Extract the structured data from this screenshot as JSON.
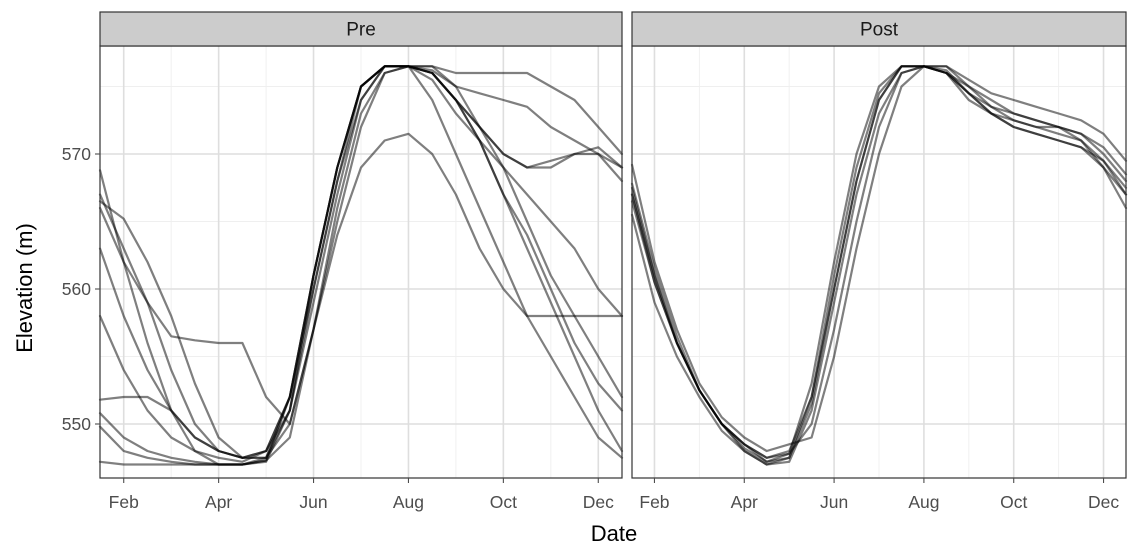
{
  "chart_data": {
    "type": "line",
    "xlabel": "Date",
    "ylabel": "Elevation (m)",
    "x_ticks": [
      "Feb",
      "Apr",
      "Jun",
      "Aug",
      "Oct",
      "Dec"
    ],
    "x_tick_months": [
      2,
      4,
      6,
      8,
      10,
      12
    ],
    "y_ticks": [
      550,
      560,
      570
    ],
    "xlim_months": [
      1.5,
      12.5
    ],
    "ylim": [
      546,
      578
    ],
    "grid": true,
    "line_color": "#000000",
    "strip_color": "#cccccc",
    "panels": [
      {
        "name": "Pre",
        "series": [
          {
            "x": [
              1.5,
              2,
              2.5,
              3,
              3.5,
              4,
              4.5,
              5,
              5.5,
              6,
              6.5,
              7,
              7.5,
              8,
              8.5,
              9,
              9.5,
              10,
              10.5,
              11,
              11.5,
              12,
              12.5
            ],
            "y": [
              568.8,
              562,
              556,
              551,
              548,
              547,
              547,
              547.2,
              551,
              561,
              569,
              575,
              576.5,
              576.5,
              576.5,
              575,
              572,
              570,
              569,
              569,
              570,
              570.5,
              569
            ]
          },
          {
            "x": [
              1.5,
              2,
              2.5,
              3,
              3.5,
              4,
              4.5,
              5,
              5.5,
              6,
              6.5,
              7,
              7.5,
              8,
              8.5,
              9,
              9.5,
              10,
              10.5,
              11,
              11.5,
              12,
              12.5
            ],
            "y": [
              567,
              563,
              559,
              554,
              550,
              548,
              547.5,
              548,
              552,
              561,
              569,
              575,
              576.5,
              576.5,
              576.2,
              575,
              574.5,
              574,
              573.5,
              572,
              571,
              570,
              568
            ]
          },
          {
            "x": [
              1.5,
              2,
              2.5,
              3,
              3.5,
              4,
              4.5,
              5,
              5.5,
              6,
              6.5,
              7,
              7.5,
              8,
              8.5,
              9,
              9.5,
              10,
              10.5,
              11,
              11.5,
              12,
              12.5
            ],
            "y": [
              563,
              558,
              554,
              551,
              549,
              548,
              547.5,
              548,
              551,
              559,
              567,
              574,
              576.5,
              576.5,
              575.5,
              573,
              571,
              569,
              567,
              565,
              563,
              560,
              558
            ]
          },
          {
            "x": [
              1.5,
              2,
              2.5,
              3,
              3.5,
              4,
              4.5,
              5,
              5.5,
              6,
              6.5,
              7,
              7.5,
              8,
              8.5,
              9,
              9.5,
              10,
              10.5,
              11,
              11.5,
              12,
              12.5
            ],
            "y": [
              558,
              554,
              551,
              549,
              548,
              547.5,
              547.2,
              548,
              552,
              560,
              568,
              575,
              576.5,
              576.5,
              574,
              570,
              566,
              562,
              558,
              555,
              552,
              549,
              547.5
            ]
          },
          {
            "x": [
              1.5,
              2,
              2.5,
              3,
              3.5,
              4,
              4.5,
              5,
              5.5,
              6,
              6.5,
              7,
              7.5,
              8,
              8.5,
              9,
              9.5,
              10,
              10.5,
              11,
              11.5,
              12,
              12.5
            ],
            "y": [
              551.8,
              552,
              552,
              551,
              549,
              548,
              547.5,
              547.5,
              551,
              560,
              568,
              574,
              576.5,
              576.5,
              576.5,
              576,
              576,
              576,
              576,
              575,
              574,
              572,
              570
            ]
          },
          {
            "x": [
              1.5,
              2,
              2.5,
              3,
              3.5,
              4,
              4.5,
              5,
              5.5,
              6,
              6.5,
              7,
              7.5,
              8,
              8.5,
              9,
              9.5,
              10,
              10.5,
              11,
              11.5,
              12,
              12.5
            ],
            "y": [
              550.8,
              549,
              548,
              547.5,
              547.2,
              547,
              547,
              547.3,
              552,
              561,
              569,
              575,
              576.5,
              576.5,
              576,
              574,
              572,
              570,
              569,
              569.5,
              570,
              570,
              569
            ]
          },
          {
            "x": [
              1.5,
              2,
              2.5,
              3,
              3.5,
              4,
              4.5,
              5,
              5.5,
              6,
              6.5,
              7,
              7.5,
              8,
              8.5,
              9,
              9.5,
              10,
              10.5,
              11,
              11.5,
              12,
              12.5
            ],
            "y": [
              549.8,
              548,
              547.5,
              547.2,
              547,
              547,
              547,
              547.3,
              549,
              557,
              566,
              573,
              576,
              576.5,
              576,
              574,
              572,
              569,
              565,
              561,
              558,
              555,
              552
            ]
          },
          {
            "x": [
              1.5,
              2,
              2.5,
              3,
              3.5,
              4,
              4.5,
              5,
              5.5,
              6,
              6.5,
              7,
              7.5,
              8,
              8.5,
              9,
              9.5,
              10,
              10.5,
              11,
              11.5,
              12,
              12.5
            ],
            "y": [
              547.2,
              547,
              547,
              547,
              547,
              547,
              547,
              547.5,
              550,
              557,
              564,
              569,
              571,
              571.5,
              570,
              567,
              563,
              560,
              558,
              558,
              558,
              558,
              558
            ]
          },
          {
            "x": [
              1.5,
              2,
              2.5,
              3,
              3.5,
              4,
              4.5,
              5,
              5.5,
              6,
              6.5,
              7,
              7.5,
              8,
              8.5,
              9,
              9.5,
              10,
              10.5,
              11,
              11.5,
              12,
              12.5
            ],
            "y": [
              566,
              562,
              559,
              556.5,
              556.2,
              556,
              556,
              552,
              550,
              557,
              565,
              572,
              576,
              576.5,
              576,
              574,
              571,
              567,
              563,
              559,
              555,
              551,
              548
            ]
          },
          {
            "x": [
              1.5,
              2,
              2.5,
              3,
              3.5,
              4,
              4.5,
              5,
              5.5,
              6,
              6.5,
              7,
              7.5,
              8,
              8.5,
              9,
              9.5,
              10,
              10.5,
              11,
              11.5,
              12,
              12.5
            ],
            "y": [
              566.5,
              565.2,
              562,
              558,
              553,
              549,
              547.5,
              547.5,
              552,
              561,
              569,
              575,
              576.5,
              576.5,
              576,
              574,
              571,
              567,
              564,
              560,
              556,
              553,
              551
            ]
          }
        ]
      },
      {
        "name": "Post",
        "series": [
          {
            "x": [
              1.5,
              2,
              2.5,
              3,
              3.5,
              4,
              4.5,
              5,
              5.5,
              6,
              6.5,
              7,
              7.5,
              8,
              8.5,
              9,
              9.5,
              10,
              10.5,
              11,
              11.5,
              12,
              12.5
            ],
            "y": [
              567.5,
              561,
              556,
              552.5,
              550,
              548,
              547,
              547.5,
              552,
              561,
              569,
              574.5,
              576.5,
              576.5,
              576,
              574,
              573,
              572.5,
              572,
              572,
              571.5,
              570,
              568
            ]
          },
          {
            "x": [
              1.5,
              2,
              2.5,
              3,
              3.5,
              4,
              4.5,
              5,
              5.5,
              6,
              6.5,
              7,
              7.5,
              8,
              8.5,
              9,
              9.5,
              10,
              10.5,
              11,
              11.5,
              12,
              12.5
            ],
            "y": [
              567,
              560.5,
              556,
              552.5,
              550,
              548.5,
              547.2,
              547.8,
              553,
              562,
              570,
              575,
              576.5,
              576.5,
              576.2,
              574.5,
              573,
              572,
              571.5,
              571,
              570.5,
              569.5,
              567.5
            ]
          },
          {
            "x": [
              1.5,
              2,
              2.5,
              3,
              3.5,
              4,
              4.5,
              5,
              5.5,
              6,
              6.5,
              7,
              7.5,
              8,
              8.5,
              9,
              9.5,
              10,
              10.5,
              11,
              11.5,
              12,
              12.5
            ],
            "y": [
              565.5,
              559,
              555,
              552,
              549.5,
              548,
              547,
              547.2,
              551,
              559,
              567,
              573,
              576,
              576.5,
              576,
              575,
              574,
              573,
              572.5,
              572,
              571,
              569,
              566
            ]
          },
          {
            "x": [
              1.5,
              2,
              2.5,
              3,
              3.5,
              4,
              4.5,
              5,
              5.5,
              6,
              6.5,
              7,
              7.5,
              8,
              8.5,
              9,
              9.5,
              10,
              10.5,
              11,
              11.5,
              12,
              12.5
            ],
            "y": [
              569.2,
              562,
              557,
              553,
              550.5,
              549,
              548,
              548.5,
              549,
              555,
              563,
              570,
              575,
              576.5,
              576.5,
              575.5,
              574.5,
              574,
              573.5,
              573,
              572.5,
              571.5,
              569.5
            ]
          },
          {
            "x": [
              1.5,
              2,
              2.5,
              3,
              3.5,
              4,
              4.5,
              5,
              5.5,
              6,
              6.5,
              7,
              7.5,
              8,
              8.5,
              9,
              9.5,
              10,
              10.5,
              11,
              11.5,
              12,
              12.5
            ],
            "y": [
              567.8,
              561.5,
              556.5,
              552.5,
              550,
              548.5,
              547.5,
              548,
              552,
              560,
              568,
              574,
              576.5,
              576.5,
              576,
              574.5,
              573.5,
              573,
              572.5,
              572,
              571.5,
              570.5,
              568.5
            ]
          },
          {
            "x": [
              1.5,
              2,
              2.5,
              3,
              3.5,
              4,
              4.5,
              5,
              5.5,
              6,
              6.5,
              7,
              7.5,
              8,
              8.5,
              9,
              9.5,
              10,
              10.5,
              11,
              11.5,
              12,
              12.5
            ],
            "y": [
              567,
              561,
              556,
              552.5,
              550,
              548.5,
              547.5,
              547.8,
              550,
              557,
              565,
              572,
              576,
              576.5,
              576.5,
              575,
              573.5,
              572.5,
              572,
              571.5,
              571,
              569.5,
              567
            ]
          },
          {
            "x": [
              1.5,
              2,
              2.5,
              3,
              3.5,
              4,
              4.5,
              5,
              5.5,
              6,
              6.5,
              7,
              7.5,
              8,
              8.5,
              9,
              9.5,
              10,
              10.5,
              11,
              11.5,
              12,
              12.5
            ],
            "y": [
              566.5,
              560.5,
              556,
              552.5,
              550,
              548.2,
              547.2,
              547.5,
              551.5,
              560,
              568,
              574,
              576.5,
              576.5,
              576,
              574.5,
              573,
              572,
              571.5,
              571,
              570.5,
              569,
              567
            ]
          }
        ]
      }
    ]
  }
}
